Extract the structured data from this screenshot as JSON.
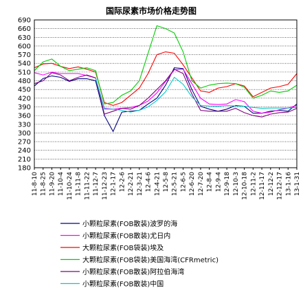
{
  "chart_data": {
    "type": "line",
    "title": "国际尿素市场价格走势图",
    "xlabel": "",
    "ylabel": "",
    "ylim": [
      180,
      690
    ],
    "yticks": [
      180,
      210,
      240,
      270,
      300,
      330,
      360,
      390,
      420,
      450,
      480,
      510,
      540,
      570,
      600,
      630,
      660,
      690
    ],
    "grid": true,
    "legend_position": "bottom",
    "categories": [
      "11-8-10",
      "11-8-25",
      "11-9-20",
      "11-10-4",
      "11-10-24",
      "11-11-8",
      "11-11-22",
      "11-12-7",
      "11-12-23",
      "12-1-17",
      "12-2-6",
      "12-2-21",
      "12-3-21",
      "12-4-6",
      "12-4-21",
      "12-5-8",
      "12-5-21",
      "12-6-5",
      "12-6-20",
      "12-7-20",
      "12-8-4",
      "12-9-4",
      "12-9-18",
      "12-10-3",
      "12-10-18",
      "12-11-2",
      "12-11-17",
      "12-12-2",
      "12-12-17",
      "13-1-16",
      "13-1-31"
    ],
    "series": [
      {
        "name": "小颗粒尿素(FOB散装)波罗的海",
        "color": "#000080",
        "values": [
          462,
          488,
          497,
          492,
          478,
          487,
          487,
          480,
          360,
          305,
          372,
          375,
          378,
          400,
          420,
          465,
          525,
          522,
          450,
          392,
          382,
          375,
          382,
          395,
          392,
          368,
          368,
          375,
          378,
          375,
          400
        ]
      },
      {
        "name": "小颗粒尿素(FOB散装)尤日内",
        "color": "#ff00ff",
        "values": [
          508,
          500,
          510,
          505,
          505,
          505,
          498,
          490,
          385,
          382,
          385,
          388,
          395,
          410,
          438,
          478,
          518,
          520,
          470,
          420,
          400,
          398,
          400,
          415,
          408,
          375,
          368,
          372,
          380,
          386,
          395
        ]
      },
      {
        "name": "大颗粒尿素(FOB袋装)埃及",
        "color": "#ff0000",
        "values": [
          525,
          538,
          540,
          530,
          522,
          528,
          520,
          510,
          405,
          395,
          405,
          430,
          455,
          505,
          570,
          580,
          575,
          535,
          490,
          445,
          440,
          455,
          460,
          470,
          462,
          425,
          440,
          455,
          460,
          468,
          505
        ]
      },
      {
        "name": "大颗粒尿素(FOB袋装)美国海湾(CFRmetric)",
        "color": "#00cc00",
        "values": [
          515,
          545,
          555,
          530,
          515,
          520,
          525,
          515,
          400,
          405,
          430,
          445,
          480,
          575,
          670,
          660,
          645,
          580,
          480,
          455,
          465,
          470,
          472,
          470,
          458,
          420,
          430,
          445,
          440,
          445,
          465
        ]
      },
      {
        "name": "小颗粒尿素(FOB散装)阿拉伯海湾",
        "color": "#800080",
        "values": [
          470,
          480,
          508,
          500,
          480,
          492,
          500,
          490,
          365,
          375,
          385,
          382,
          395,
          420,
          450,
          480,
          520,
          505,
          435,
          378,
          375,
          375,
          375,
          385,
          370,
          360,
          355,
          365,
          370,
          372,
          385
        ]
      },
      {
        "name": "小颗粒尿素(FOB散装)中国",
        "color": "#00cccc",
        "values": [
          null,
          null,
          null,
          null,
          null,
          null,
          null,
          490,
          382,
          382,
          378,
          372,
          378,
          390,
          412,
          442,
          492,
          468,
          425,
          395,
          393,
          392,
          395,
          393,
          392,
          388,
          385,
          386,
          386,
          386,
          388
        ]
      }
    ]
  }
}
